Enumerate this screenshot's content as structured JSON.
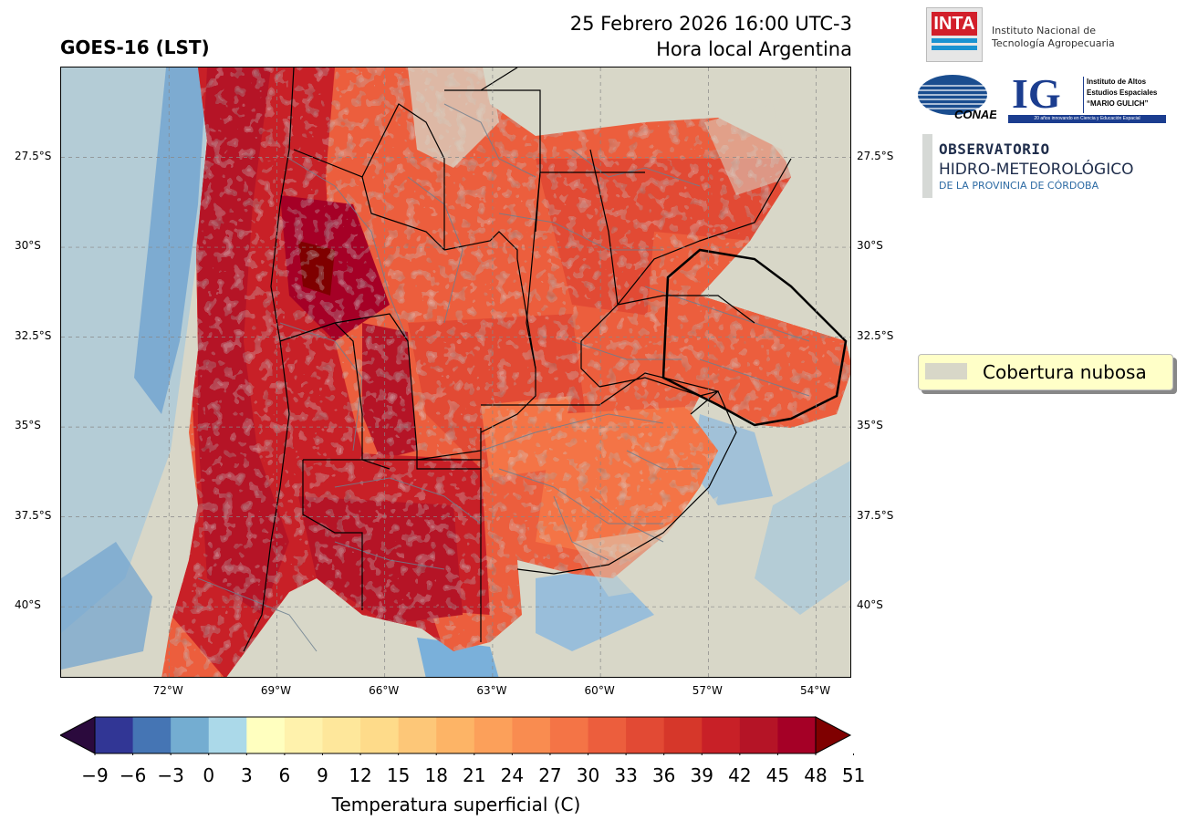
{
  "header": {
    "product_title": "GOES-16 (LST)",
    "datetime": "25 Febrero 2026 16:00 UTC-3",
    "local_time_label": "Hora local Argentina"
  },
  "map": {
    "lat_ticks": [
      "27.5°S",
      "30°S",
      "32.5°S",
      "35°S",
      "37.5°S",
      "40°S"
    ],
    "lon_ticks": [
      "72°W",
      "69°W",
      "66°W",
      "63°W",
      "60°W",
      "57°W",
      "54°W"
    ],
    "lat_values": [
      -27.5,
      -30,
      -32.5,
      -35,
      -37.5,
      -40
    ],
    "lon_values": [
      -72,
      -69,
      -66,
      -63,
      -60,
      -57,
      -54
    ],
    "extent": {
      "lon_min": -75.0,
      "lon_max": -53.0,
      "lat_min": -42.0,
      "lat_max": -25.0
    },
    "cloud_color": "#d8d7c8"
  },
  "legend": {
    "cloud_label": "Cobertura nubosa",
    "cloud_color": "#d8d7c8"
  },
  "colorbar": {
    "title": "Temperatura superficial (C)",
    "tick_labels": [
      "−9",
      "−6",
      "−3",
      "0",
      "3",
      "6",
      "9",
      "12",
      "15",
      "18",
      "21",
      "24",
      "27",
      "30",
      "33",
      "36",
      "39",
      "42",
      "45",
      "48",
      "51"
    ],
    "colors": [
      "#313695",
      "#4575b4",
      "#74add1",
      "#abd9e9",
      "#ffffbf",
      "#fff2ac",
      "#fee79b",
      "#fedb8a",
      "#fdc778",
      "#fdb466",
      "#fca05a",
      "#f98c50",
      "#f47446",
      "#ec5e3d",
      "#e24a34",
      "#d6372a",
      "#c82027",
      "#b51426",
      "#a50026",
      "#7f0000"
    ],
    "under_color": "#2b0a3d",
    "over_color": "#7f0000"
  },
  "logos": {
    "inta_mark": "INTA",
    "inta_name_1": "Instituto Nacional de",
    "inta_name_2": "Tecnología Agropecuaria",
    "conae_mark": "CONAE",
    "ig_mark": "IG",
    "ig_name_1": "Instituto de Altos",
    "ig_name_2": "Estudios Espaciales",
    "ig_name_3": "“MARIO GULICH”",
    "ig_tagline": "20 años innovando en Ciencia y Educación Espacial",
    "obs_1": "OBSERVATORIO",
    "obs_2": "HIDRO-METEOROLÓGICO",
    "obs_3": "DE LA PROVINCIA DE CÓRDOBA"
  }
}
